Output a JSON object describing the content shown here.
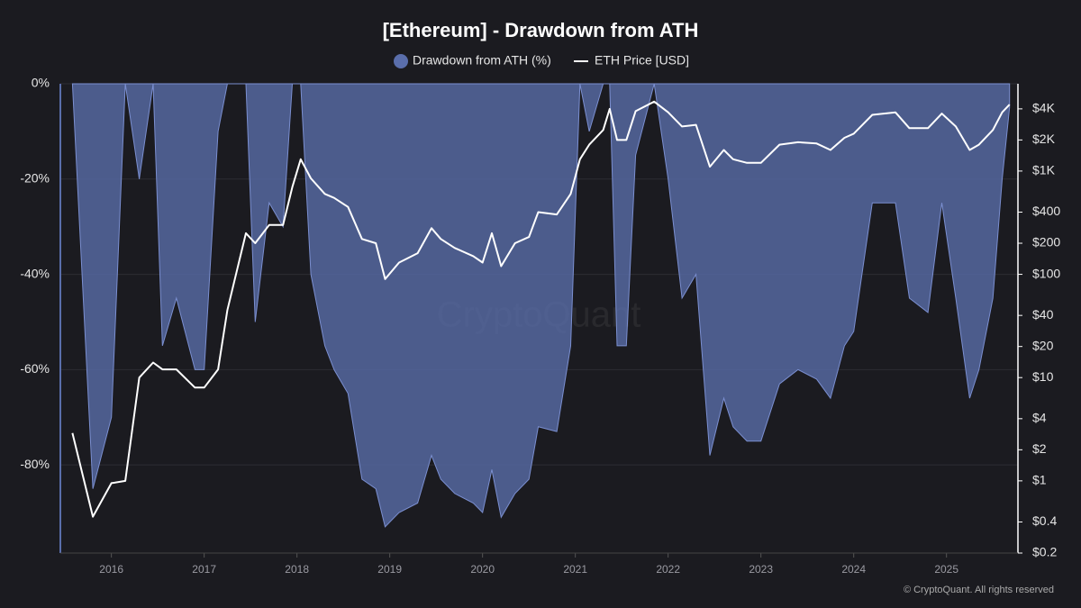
{
  "chart_data": {
    "type": "area-line",
    "title": "[Ethereum] - Drawdown from ATH",
    "watermark": "CryptoQuant",
    "credit": "© CryptoQuant. All rights reserved",
    "x": [
      2015.58,
      2015.8,
      2016.0,
      2016.15,
      2016.3,
      2016.45,
      2016.55,
      2016.7,
      2016.9,
      2017.0,
      2017.15,
      2017.25,
      2017.45,
      2017.55,
      2017.7,
      2017.85,
      2017.95,
      2018.04,
      2018.15,
      2018.3,
      2018.4,
      2018.55,
      2018.7,
      2018.85,
      2018.95,
      2019.1,
      2019.3,
      2019.45,
      2019.55,
      2019.7,
      2019.9,
      2020.0,
      2020.1,
      2020.2,
      2020.35,
      2020.5,
      2020.6,
      2020.8,
      2020.95,
      2021.05,
      2021.15,
      2021.3,
      2021.37,
      2021.45,
      2021.55,
      2021.65,
      2021.85,
      2022.0,
      2022.15,
      2022.3,
      2022.45,
      2022.6,
      2022.7,
      2022.85,
      2023.0,
      2023.2,
      2023.4,
      2023.6,
      2023.75,
      2023.9,
      2024.0,
      2024.2,
      2024.45,
      2024.6,
      2024.8,
      2024.95,
      2025.1,
      2025.25,
      2025.35,
      2025.5,
      2025.6,
      2025.68
    ],
    "series": [
      {
        "name": "Drawdown from ATH (%)",
        "color": "#5a6eab",
        "values": [
          0,
          -85,
          -70,
          0,
          -20,
          0,
          -55,
          -45,
          -60,
          -60,
          -10,
          0,
          0,
          -50,
          -25,
          -30,
          0,
          0,
          -40,
          -55,
          -60,
          -65,
          -83,
          -85,
          -93,
          -90,
          -88,
          -78,
          -83,
          -86,
          -88,
          -90,
          -81,
          -91,
          -86,
          -83,
          -72,
          -73,
          -55,
          0,
          -10,
          0,
          0,
          -55,
          -55,
          -15,
          0,
          -20,
          -45,
          -40,
          -78,
          -66,
          -72,
          -75,
          -75,
          -63,
          -60,
          -62,
          -66,
          -55,
          -52,
          -25,
          -25,
          -45,
          -48,
          -25,
          -45,
          -66,
          -60,
          -45,
          -20,
          -5
        ]
      },
      {
        "name": "ETH Price [USD]",
        "color": "#ffffff",
        "axis": "y2",
        "values": [
          2.9,
          0.45,
          0.95,
          1,
          10,
          14,
          12,
          12,
          8,
          8,
          12,
          45,
          250,
          200,
          300,
          300,
          700,
          1300,
          850,
          600,
          550,
          450,
          220,
          200,
          90,
          130,
          160,
          280,
          220,
          180,
          150,
          130,
          250,
          120,
          200,
          230,
          400,
          380,
          600,
          1300,
          1800,
          2500,
          4000,
          2000,
          2000,
          3800,
          4700,
          3700,
          2700,
          2800,
          1100,
          1600,
          1300,
          1200,
          1200,
          1800,
          1900,
          1850,
          1600,
          2100,
          2300,
          3500,
          3700,
          2600,
          2600,
          3600,
          2700,
          1600,
          1800,
          2500,
          3700,
          4400
        ]
      }
    ],
    "xlim": [
      2015.45,
      2025.77
    ],
    "xticks": [
      2016,
      2017,
      2018,
      2019,
      2020,
      2021,
      2022,
      2023,
      2024,
      2025
    ],
    "ylim": [
      -98.5,
      0
    ],
    "yticks": [
      {
        "value": 0,
        "label": "0%"
      },
      {
        "value": -20,
        "label": "-20%"
      },
      {
        "value": -40,
        "label": "-40%"
      },
      {
        "value": -60,
        "label": "-60%"
      },
      {
        "value": -80,
        "label": "-80%"
      }
    ],
    "y2lim": [
      0.2,
      7000
    ],
    "y2log": true,
    "y2ticks": [
      {
        "value": 4000,
        "label": "$4K"
      },
      {
        "value": 2000,
        "label": "$2K"
      },
      {
        "value": 1000,
        "label": "$1K"
      },
      {
        "value": 400,
        "label": "$400"
      },
      {
        "value": 200,
        "label": "$200"
      },
      {
        "value": 100,
        "label": "$100"
      },
      {
        "value": 40,
        "label": "$40"
      },
      {
        "value": 20,
        "label": "$20"
      },
      {
        "value": 10,
        "label": "$10"
      },
      {
        "value": 4,
        "label": "$4"
      },
      {
        "value": 2,
        "label": "$2"
      },
      {
        "value": 1,
        "label": "$1"
      },
      {
        "value": 0.4,
        "label": "$0.4"
      },
      {
        "value": 0.2,
        "label": "$0.2"
      }
    ],
    "grid": true
  }
}
